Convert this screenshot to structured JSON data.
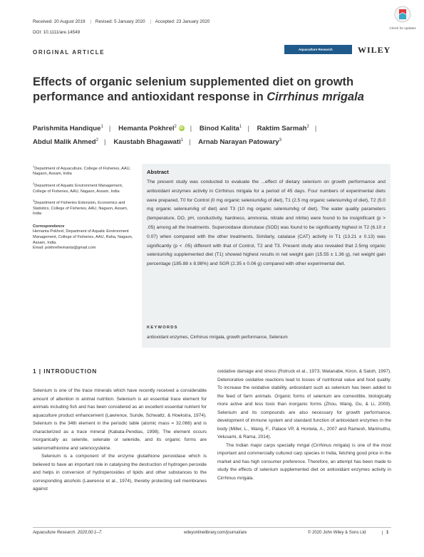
{
  "header": {
    "received": "Received: 20 August 2019",
    "revised": "Revised: 5 January 2020",
    "accepted": "Accepted: 23 January 2020",
    "doi": "DOI: 10.1111/are.14549",
    "article_type": "ORIGINAL ARTICLE",
    "journal_logo_text": "Aquaculture Research",
    "publisher": "WILEY",
    "crossmark_label": "Check for updates"
  },
  "title": {
    "main": "Effects of organic selenium supplemented diet on growth performance and antioxidant response in ",
    "italic": "Cirrhinus mrigala"
  },
  "authors": [
    {
      "name": "Parishmita Handique",
      "sup": "1"
    },
    {
      "name": "Hemanta Pokhrel",
      "sup": "2",
      "orcid": "iD"
    },
    {
      "name": "Binod Kalita",
      "sup": "1"
    },
    {
      "name": "Raktim Sarmah",
      "sup": "2"
    },
    {
      "name": "Abdul Malik Ahmed",
      "sup": "2"
    },
    {
      "name": "Kaustabh Bhagawati",
      "sup": "1"
    },
    {
      "name": "Arnab Narayan Patowary",
      "sup": "3"
    }
  ],
  "affiliations": [
    {
      "sup": "1",
      "text": "Department of Aquaculture, College of Fisheries, AAU, Nagaon, Assam, India"
    },
    {
      "sup": "2",
      "text": "Department of Aquatic Environment Management, College of Fisheries, AAU, Nagaon, Assam, India"
    },
    {
      "sup": "3",
      "text": "Department of Fisheries Extension, Economics and Statistics, College of Fisheries, AAU, Nagaon, Assam, India"
    }
  ],
  "correspondence": {
    "heading": "Correspondence",
    "text": "Hemanta Pokhrel, Department of Aquatic Environment Management, College of Fisheries, AAU, Raha, Nagaon, Assam, India.",
    "email": "Email: pokhrelhemanta@gmail.com"
  },
  "abstract": {
    "heading": "Abstract",
    "text": "The present study was conducted to evaluate the ...effect of dietary selenium on growth performance and antioxidant enzymes activity in Cirrhinus mrigala for a period of 45 days. Four numbers of experimental diets were prepared, T0 for Control (0 mg organic selenium/kg of diet), T1 (2.5 mg organic selenium/kg of diet), T2 (5.0 mg organic selenium/kg of diet) and T3 (10 mg organic selenium/kg of diet). The water quality parameters (temperature, DO, pH, conductivity, hardness, ammonia, nitrate and nitrite) were found to be insignificant (p > .05) among all the treatments. Superoxidase dismutase (SOD) was found to be significantly highest in T2 (6.10 ± 0.07) when compared with the other treatments. Similarly, catalase (CAT) activity in T1 (13.21 ± 0.13) was significantly (p < .05) different with that of Control, T2 and T3. Present study also revealed that 2.5mg organic selenium/kg supplemented diet (T1) showed highest results in net weight gain (15.55 ± 1.36 g), net weight gain percentage (185.88 ± 8.98%) and SGR (2.35 ± 0.06 g) compared with other experimental diet.",
    "keywords_heading": "KEYWORDS",
    "keywords": "antioxidant enzymes, Cirrhinus mrigala, growth performance, Selenium"
  },
  "intro": {
    "heading": "1  |  INTRODUCTION",
    "left_p1": "Selenium is one of the trace minerals which have recently received a considerable amount of attention in animal nutrition. Selenium is an essential trace element for animals including fish and has been considered as an excellent essential nutrient for aquaculture product enhancement (Lawrence, Sunde, Schwattz, & Hoekstra, 1974). Selenium is the 34th element in the periodic table (atomic mass = 32.066) and is characterized as a trace mineral (Kabata-Pendias, 1998). The element occurs inorganically as selenite, selenate or selenide, and its organic forms are selenomethionine and selenocysteine.",
    "left_p2": "Selenium is a component of the enzyme glutathione peroxidase which is believed to have an important role in catalysing the destruction of hydrogen peroxide and helps in conversion of hydroperoxides of lipids and other substances to the corresponding alcohols (Lawrence et al., 1974), thereby protecting cell membranes against",
    "right_p1": "oxidative damage and stress (Rotruck et al., 1973; Watanabe, Kiron, & Satoh, 1997). Deteriorative oxidative reactions lead to losses of nutritional value and food quality. To increase the oxidative stability, antioxidant such as selenium has been added to the feed of farm animals. Organic forms of selenium are comestible, biologically more active and less toxic than inorganic forms (Zhou, Wang, Gu, & Li, 2009). Selenium and its compounds are also necessary for growth performance, development of immune system and standard function of antioxidant enzymes in the body (Miller, L., Wang, F., Palace VP, & Hontela, A., 2007 and Ramesh, Marimuthu, Velusami, & Rama, 2014).",
    "right_p2": "The Indian major carps specially mrigal (Cirrhinus mrigala) is one of the most important and commercially cultured carp species in India, fetching good price in the market and has high consumer preference. Therefore, an attempt has been made to study the effects of selenium supplemented diet on antioxidant enzymes activity in Cirrhinus mrigala."
  },
  "footer": {
    "left": "Aquaculture Research. 2020;00:1–7.",
    "center": "wileyonlinelibrary.com/journal/are",
    "right": "© 2020 John Wiley & Sons Ltd",
    "page": "1"
  }
}
